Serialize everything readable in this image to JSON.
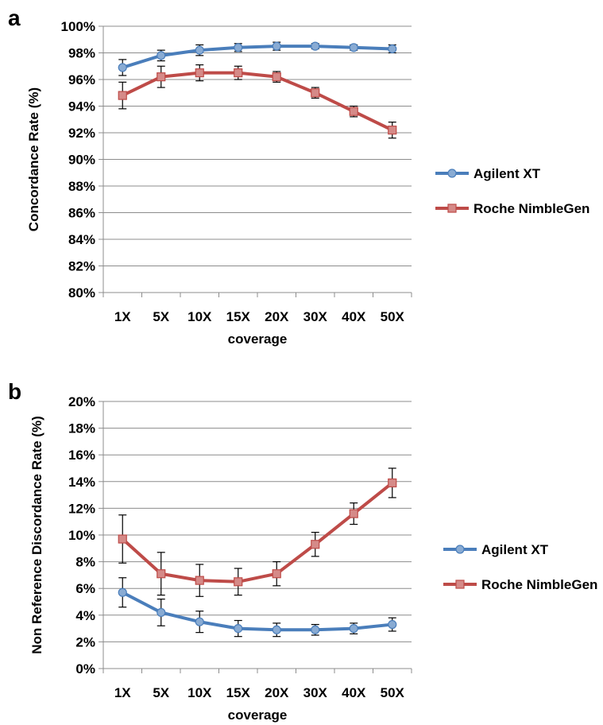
{
  "panels": [
    "a",
    "b"
  ],
  "chart_data": [
    {
      "type": "line",
      "panel": "a",
      "categories": [
        "1X",
        "5X",
        "10X",
        "15X",
        "20X",
        "30X",
        "40X",
        "50X"
      ],
      "xlabel": "coverage",
      "ylabel": "Concordance Rate (%)",
      "ylim": [
        80,
        100
      ],
      "ytick_step": 2,
      "ytick_labels": [
        "80%",
        "82%",
        "84%",
        "86%",
        "88%",
        "90%",
        "92%",
        "94%",
        "96%",
        "98%",
        "100%"
      ],
      "grid": true,
      "legend": "right",
      "series": [
        {
          "name": "Agilent XT",
          "color": "#4a7ebb",
          "marker": "circle",
          "values": [
            96.9,
            97.8,
            98.2,
            98.4,
            98.5,
            98.5,
            98.4,
            98.3
          ],
          "errors": [
            0.6,
            0.4,
            0.4,
            0.3,
            0.3,
            0.2,
            0.2,
            0.3
          ]
        },
        {
          "name": "Roche NimbleGen",
          "color": "#be4b48",
          "marker": "square",
          "values": [
            94.8,
            96.2,
            96.5,
            96.5,
            96.2,
            95.0,
            93.6,
            92.2
          ],
          "errors": [
            1.0,
            0.8,
            0.6,
            0.5,
            0.4,
            0.4,
            0.4,
            0.6
          ]
        }
      ]
    },
    {
      "type": "line",
      "panel": "b",
      "categories": [
        "1X",
        "5X",
        "10X",
        "15X",
        "20X",
        "30X",
        "40X",
        "50X"
      ],
      "xlabel": "coverage",
      "ylabel": "Non Reference Discordance Rate (%)",
      "ylim": [
        0,
        20
      ],
      "ytick_step": 2,
      "ytick_labels": [
        "0%",
        "2%",
        "4%",
        "6%",
        "8%",
        "10%",
        "12%",
        "14%",
        "16%",
        "18%",
        "20%"
      ],
      "grid": true,
      "legend": "right",
      "series": [
        {
          "name": "Agilent XT",
          "color": "#4a7ebb",
          "marker": "circle",
          "values": [
            5.7,
            4.2,
            3.5,
            3.0,
            2.9,
            2.9,
            3.0,
            3.3
          ],
          "errors": [
            1.1,
            1.0,
            0.8,
            0.6,
            0.5,
            0.4,
            0.4,
            0.5
          ]
        },
        {
          "name": "Roche NimbleGen",
          "color": "#be4b48",
          "marker": "square",
          "values": [
            9.7,
            7.1,
            6.6,
            6.5,
            7.1,
            9.3,
            11.6,
            13.9
          ],
          "errors": [
            1.8,
            1.6,
            1.2,
            1.0,
            0.9,
            0.9,
            0.8,
            1.1
          ]
        }
      ]
    }
  ]
}
